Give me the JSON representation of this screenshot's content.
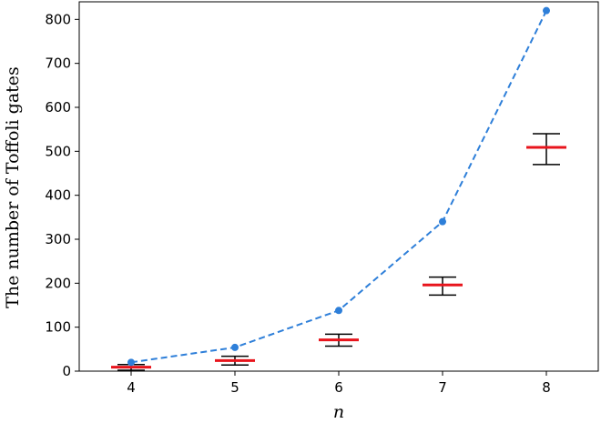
{
  "chart_data": {
    "type": "line",
    "title": "",
    "xlabel": "n",
    "ylabel": "The number of Toffoli gates",
    "x": [
      4,
      5,
      6,
      7,
      8
    ],
    "xlim": [
      3.5,
      8.5
    ],
    "ylim": [
      0,
      840
    ],
    "xticks": [
      "4",
      "5",
      "6",
      "7",
      "8"
    ],
    "yticks": [
      "0",
      "100",
      "200",
      "300",
      "400",
      "500",
      "600",
      "700",
      "800"
    ],
    "grid": false,
    "series": [
      {
        "kind": "line",
        "style": "dashed with circle markers",
        "color": "#2e7fd9",
        "values": [
          20,
          54,
          138,
          340,
          820
        ]
      },
      {
        "kind": "errorbar",
        "style": "red horizontal mean bar with black error bars",
        "mean_color": "#e8141c",
        "error_color": "#000000",
        "mean": [
          9,
          24,
          71,
          196,
          509
        ],
        "lower": [
          2,
          14,
          57,
          173,
          470
        ],
        "upper": [
          15,
          34,
          84,
          214,
          540
        ]
      }
    ]
  }
}
